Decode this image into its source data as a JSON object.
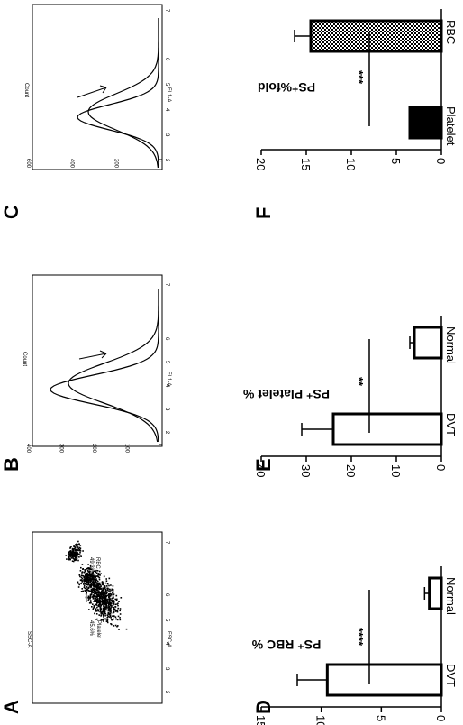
{
  "figure": {
    "panel_letters": [
      "A",
      "B",
      "C",
      "D",
      "E",
      "F"
    ],
    "tick_exponent_labels": [
      "2",
      "3",
      "4",
      "5",
      "6",
      "7"
    ]
  },
  "chart_data": [
    {
      "panel": "A",
      "type": "scatter",
      "xlabel": "FSC-A",
      "ylabel": "SSC-A",
      "axis_scale": "log",
      "gates": [
        {
          "name": "RBC",
          "value": "49.3%"
        },
        {
          "name": "Platelet",
          "value": "45.6%"
        }
      ]
    },
    {
      "panel": "B",
      "type": "line",
      "xlabel": "FL1-A",
      "ylabel": "Count",
      "axis_scale": "log",
      "ylim": [
        0,
        400
      ],
      "yticks": [
        0,
        100,
        200,
        300,
        400
      ]
    },
    {
      "panel": "C",
      "type": "line",
      "xlabel": "FL1-A",
      "ylabel": "Count",
      "axis_scale": "log",
      "ylim": [
        0,
        600
      ],
      "yticks": [
        0,
        200,
        400,
        600
      ]
    },
    {
      "panel": "D",
      "type": "bar",
      "categories": [
        "Normal",
        "DVT"
      ],
      "values": [
        1.0,
        9.5
      ],
      "errors": [
        0.4,
        2.5
      ],
      "ylabel": "PS⁺ RBC %",
      "ylim": [
        0,
        15
      ],
      "yticks": [
        0,
        5,
        10,
        15
      ],
      "significance": "****"
    },
    {
      "panel": "E",
      "type": "bar",
      "categories": [
        "Normal",
        "DVT"
      ],
      "values": [
        6.0,
        24.0
      ],
      "errors": [
        1.0,
        7.0
      ],
      "ylabel": "PS⁺ Platelet %",
      "ylim": [
        0,
        40
      ],
      "yticks": [
        0,
        10,
        20,
        30,
        40
      ],
      "significance": "**"
    },
    {
      "panel": "F",
      "type": "bar",
      "categories": [
        "RBC",
        "Platelet"
      ],
      "values": [
        14.5,
        3.5
      ],
      "errors": [
        1.8,
        0
      ],
      "ylabel": "PS⁺%fold",
      "ylim": [
        0,
        20
      ],
      "yticks": [
        0,
        5,
        10,
        15,
        20
      ],
      "significance": "***"
    }
  ]
}
